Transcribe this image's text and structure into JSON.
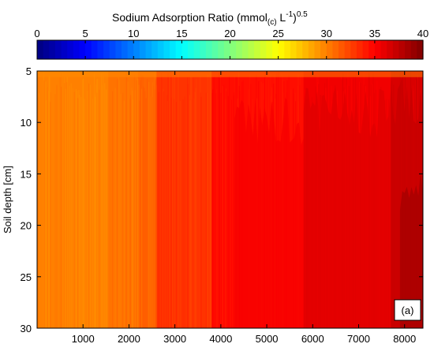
{
  "chart_data": {
    "type": "heatmap",
    "colorbar": {
      "title_main": "Sodium Adsorption Ratio (mmol",
      "title_sub": "(c)",
      "title_mid": " L",
      "title_sup1": "-1",
      "title_end": ")",
      "title_sup2": "0.5",
      "ticks": [
        "0",
        "5",
        "10",
        "15",
        "20",
        "25",
        "30",
        "35",
        "40"
      ],
      "range": [
        0,
        40
      ],
      "colormap": "jet",
      "placement": "top"
    },
    "ylabel": "Soil depth [cm]",
    "xlabel": "",
    "xlim": [
      0,
      8400
    ],
    "ylim": [
      5,
      30
    ],
    "y_reversed": true,
    "xticks": [
      "1000",
      "2000",
      "3000",
      "4000",
      "5000",
      "6000",
      "7000",
      "8000"
    ],
    "yticks": [
      "5",
      "10",
      "15",
      "20",
      "25",
      "30"
    ],
    "panel_label": "(a)",
    "value_range_shown": [
      28,
      39
    ],
    "segments": [
      {
        "x_start": 0,
        "x_end": 1550,
        "value": 30
      },
      {
        "x_start": 1550,
        "x_end": 2200,
        "value": 30.5
      },
      {
        "x_start": 2200,
        "x_end": 2600,
        "value": 31
      },
      {
        "x_start": 2600,
        "x_end": 3800,
        "value": 33
      },
      {
        "x_start": 3800,
        "x_end": 5800,
        "value": 34.5
      },
      {
        "x_start": 5800,
        "x_end": 7700,
        "value": 35.5
      },
      {
        "x_start": 7700,
        "x_end": 8400,
        "value": 36.5
      }
    ]
  }
}
